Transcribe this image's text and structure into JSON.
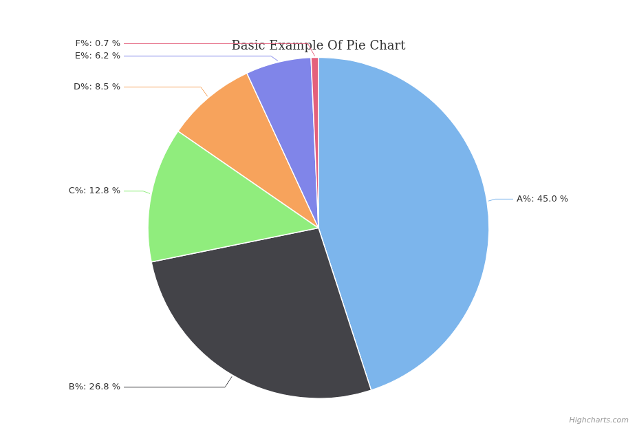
{
  "chart_data": {
    "type": "pie",
    "title": "Basic Example Of Pie Chart",
    "categories": [
      "A%",
      "B%",
      "C%",
      "D%",
      "E%",
      "F%"
    ],
    "values": [
      45.0,
      26.8,
      12.8,
      8.5,
      6.2,
      0.7
    ],
    "value_labels": [
      "A%: 45.0 %",
      "B%: 26.8 %",
      "C%: 12.8 %",
      "D%: 8.5 %",
      "E%: 6.2 %",
      "F%: 0.7 %"
    ],
    "colors": [
      "#7cb5ec",
      "#434348",
      "#90ed7d",
      "#f7a35c",
      "#8085e9",
      "#e4607c"
    ],
    "data_labels": true,
    "annotations": [
      "Highcharts.com"
    ]
  }
}
